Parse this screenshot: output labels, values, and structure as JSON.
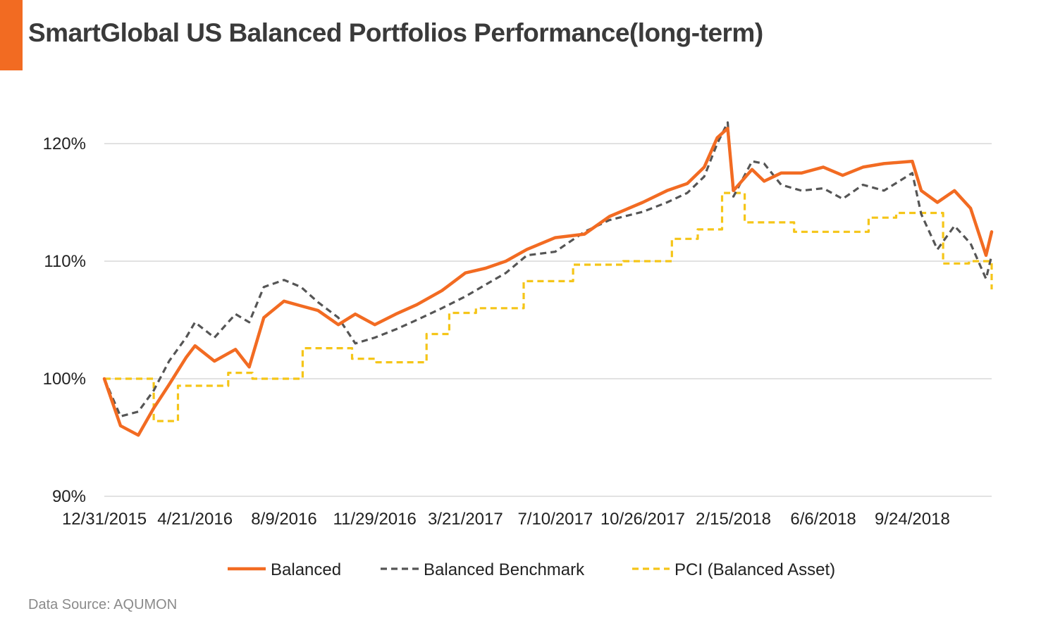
{
  "header": {
    "title": "SmartGlobal US Balanced Portfolios Performance(long-term)"
  },
  "footer": {
    "source": "Data Source: AQUMON"
  },
  "colors": {
    "accent": "#f26b22",
    "balanced": "#f26b22",
    "benchmark": "#555555",
    "pci": "#f5c518",
    "grid": "#d9d9d9"
  },
  "chart_data": {
    "type": "line",
    "title": "SmartGlobal US Balanced Portfolios Performance(long-term)",
    "x_tick_labels": [
      "12/31/2015",
      "4/21/2016",
      "8/9/2016",
      "11/29/2016",
      "3/21/2017",
      "7/10/2017",
      "10/26/2017",
      "2/15/2018",
      "6/6/2018",
      "9/24/2018"
    ],
    "y_tick_labels": [
      "90%",
      "100%",
      "110%",
      "120%"
    ],
    "y_ticks": [
      90,
      100,
      110,
      120
    ],
    "ylim": [
      90,
      122
    ],
    "x_range": [
      "12/31/2015",
      "12/31/2018"
    ],
    "grid": "horizontal",
    "legend_position": "bottom",
    "series": [
      {
        "name": "Balanced",
        "style": "solid",
        "x": [
          "12/31/2015",
          "1/20/2016",
          "2/11/2016",
          "3/1/2016",
          "3/20/2016",
          "4/10/2016",
          "4/21/2016",
          "5/15/2016",
          "6/10/2016",
          "6/27/2016",
          "7/15/2016",
          "8/9/2016",
          "8/30/2016",
          "9/20/2016",
          "10/15/2016",
          "11/5/2016",
          "11/29/2016",
          "12/25/2016",
          "1/20/2017",
          "2/20/2017",
          "3/21/2017",
          "4/15/2017",
          "5/10/2017",
          "6/5/2017",
          "7/10/2017",
          "8/15/2017",
          "9/15/2017",
          "10/26/2017",
          "11/25/2017",
          "12/20/2017",
          "1/10/2018",
          "1/26/2018",
          "2/8/2018",
          "2/15/2018",
          "3/10/2018",
          "3/25/2018",
          "4/15/2018",
          "5/10/2018",
          "6/6/2018",
          "6/30/2018",
          "7/25/2018",
          "8/20/2018",
          "9/24/2018",
          "10/5/2018",
          "10/25/2018",
          "11/15/2018",
          "12/5/2018",
          "12/24/2018",
          "12/31/2018"
        ],
        "y": [
          100.0,
          96.0,
          95.2,
          97.5,
          99.5,
          101.8,
          102.8,
          101.5,
          102.5,
          101.0,
          105.2,
          106.6,
          106.2,
          105.8,
          104.6,
          105.5,
          104.6,
          105.5,
          106.3,
          107.5,
          109.0,
          109.4,
          110.0,
          111.0,
          112.0,
          112.3,
          113.8,
          115.0,
          116.0,
          116.6,
          118.0,
          120.5,
          121.3,
          116.0,
          117.8,
          116.8,
          117.5,
          117.5,
          118.0,
          117.3,
          118.0,
          118.3,
          118.5,
          116.0,
          115.0,
          116.0,
          114.5,
          110.5,
          112.5
        ]
      },
      {
        "name": "Balanced Benchmark",
        "style": "dashed",
        "x": [
          "12/31/2015",
          "1/20/2016",
          "2/11/2016",
          "3/1/2016",
          "3/20/2016",
          "4/10/2016",
          "4/21/2016",
          "5/15/2016",
          "6/10/2016",
          "6/27/2016",
          "7/15/2016",
          "8/9/2016",
          "8/30/2016",
          "9/20/2016",
          "10/15/2016",
          "11/5/2016",
          "11/29/2016",
          "12/25/2016",
          "1/20/2017",
          "2/20/2017",
          "3/21/2017",
          "4/15/2017",
          "5/10/2017",
          "6/5/2017",
          "7/10/2017",
          "8/15/2017",
          "9/15/2017",
          "10/26/2017",
          "11/25/2017",
          "12/20/2017",
          "1/10/2018",
          "1/26/2018",
          "2/8/2018",
          "2/15/2018",
          "3/10/2018",
          "3/25/2018",
          "4/15/2018",
          "5/10/2018",
          "6/6/2018",
          "6/30/2018",
          "7/25/2018",
          "8/20/2018",
          "9/24/2018",
          "10/5/2018",
          "10/25/2018",
          "11/15/2018",
          "12/5/2018",
          "12/24/2018",
          "12/31/2018"
        ],
        "y": [
          100.0,
          96.8,
          97.2,
          99.0,
          101.5,
          103.5,
          104.8,
          103.5,
          105.5,
          104.8,
          107.8,
          108.4,
          107.8,
          106.5,
          105.2,
          103.0,
          103.5,
          104.2,
          105.0,
          106.0,
          107.0,
          108.0,
          109.0,
          110.5,
          110.8,
          112.5,
          113.5,
          114.2,
          115.0,
          115.8,
          117.2,
          120.0,
          121.8,
          115.5,
          118.5,
          118.3,
          116.5,
          116.0,
          116.2,
          115.3,
          116.5,
          116.0,
          117.5,
          114.0,
          111.0,
          113.0,
          111.5,
          108.5,
          110.5
        ]
      },
      {
        "name": "PCI (Balanced Asset)",
        "style": "dashed-step",
        "x": [
          "12/31/2015",
          "2/1/2016",
          "3/1/2016",
          "3/31/2016",
          "5/2/2016",
          "6/1/2016",
          "7/1/2016",
          "8/1/2016",
          "9/1/2016",
          "10/3/2016",
          "11/1/2016",
          "12/1/2016",
          "1/3/2017",
          "2/1/2017",
          "3/1/2017",
          "4/3/2017",
          "5/1/2017",
          "6/1/2017",
          "7/3/2017",
          "8/1/2017",
          "9/1/2017",
          "10/2/2017",
          "11/1/2017",
          "12/1/2017",
          "1/2/2018",
          "2/1/2018",
          "3/1/2018",
          "4/2/2018",
          "5/1/2018",
          "6/1/2018",
          "7/2/2018",
          "8/1/2018",
          "9/4/2018",
          "10/1/2018",
          "11/1/2018",
          "12/3/2018",
          "12/31/2018"
        ],
        "y": [
          100.0,
          100.0,
          96.4,
          99.4,
          99.4,
          100.5,
          100.0,
          100.0,
          102.6,
          102.6,
          101.7,
          101.4,
          101.4,
          103.8,
          105.6,
          106.0,
          106.0,
          108.3,
          108.3,
          109.7,
          109.7,
          110.0,
          110.0,
          111.9,
          112.7,
          115.8,
          113.3,
          113.3,
          112.5,
          112.5,
          112.5,
          113.7,
          114.1,
          114.1,
          109.8,
          110.0,
          107.6
        ]
      }
    ]
  }
}
